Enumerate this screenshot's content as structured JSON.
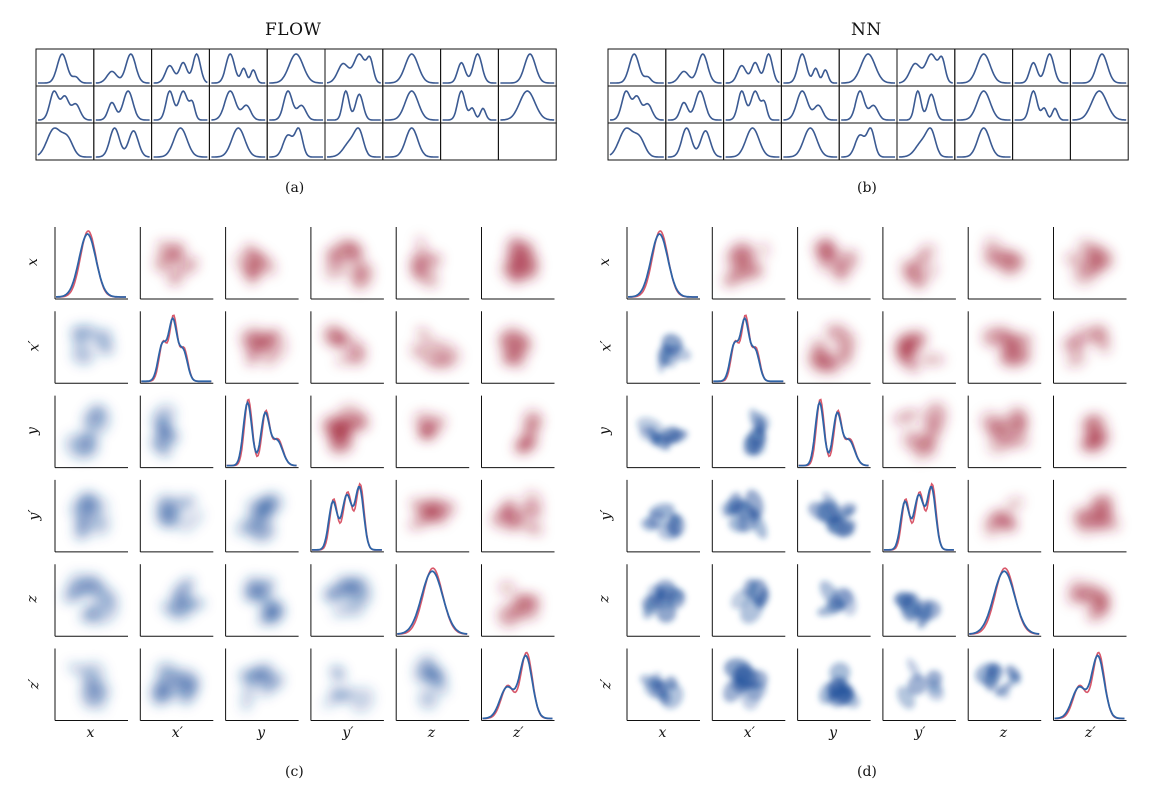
{
  "figure": {
    "titles": [
      "FLOW",
      "NN"
    ],
    "captions": [
      "(a)",
      "(b)",
      "(c)",
      "(d)"
    ],
    "grid_variables": [
      "x",
      "x′",
      "y",
      "y′",
      "z",
      "z′"
    ]
  },
  "colors": {
    "curve": "#3b5a92",
    "blue_density": "#1f4f9a",
    "red_density": "#a2253a",
    "reference_line": "#d9586a",
    "model_line": "#2f63a6"
  },
  "panel_a": {
    "rows": 3,
    "cols": 9,
    "filled_cells": 25
  },
  "panel_b": {
    "rows": 3,
    "cols": 9,
    "filled_cells": 25
  }
}
